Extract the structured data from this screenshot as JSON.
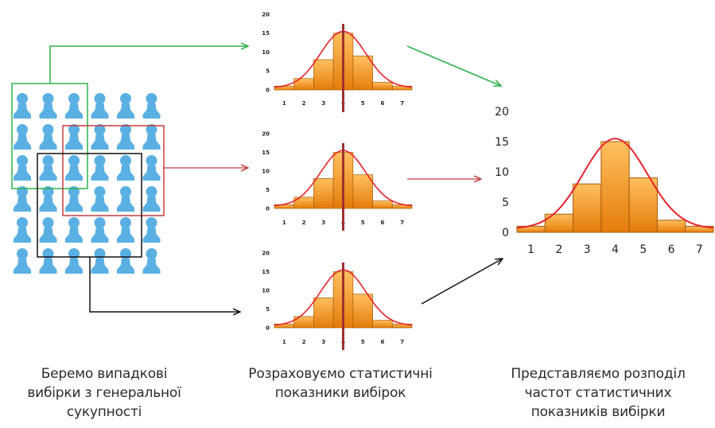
{
  "colors": {
    "pawn": "#5bb0e3",
    "bar_top": "#ffb14a",
    "bar_bottom": "#e67f0d",
    "bar_stroke": "#a85a08",
    "curve": "#e8242b",
    "mean_line": "#a03030",
    "box_green": "#2db24a",
    "box_red": "#c83c3c",
    "box_black": "#111111",
    "arrow_green": "#2db24a",
    "arrow_red": "#c83c3c",
    "arrow_black": "#111111"
  },
  "population": {
    "rows": 6,
    "cols": 6,
    "icon": "person-pawn-icon"
  },
  "chart_data": [
    {
      "type": "bar",
      "id": "sample-1",
      "categories": [
        "1",
        "2",
        "3",
        "4",
        "5",
        "6",
        "7"
      ],
      "values": [
        1,
        3,
        8,
        15,
        9,
        2,
        1
      ],
      "ylim": [
        0,
        20
      ],
      "yticks": [
        "0",
        "5",
        "10",
        "15",
        "20"
      ],
      "mean_line_at": 4,
      "curve": "normal"
    },
    {
      "type": "bar",
      "id": "sample-2",
      "categories": [
        "1",
        "2",
        "3",
        "4",
        "5",
        "6",
        "7"
      ],
      "values": [
        1,
        3,
        8,
        15,
        9,
        2,
        1
      ],
      "ylim": [
        0,
        20
      ],
      "yticks": [
        "0",
        "5",
        "10",
        "15",
        "20"
      ],
      "mean_line_at": 4,
      "curve": "normal"
    },
    {
      "type": "bar",
      "id": "sample-3",
      "categories": [
        "1",
        "2",
        "3",
        "4",
        "5",
        "6",
        "7"
      ],
      "values": [
        1,
        3,
        8,
        15,
        9,
        2,
        1
      ],
      "ylim": [
        0,
        20
      ],
      "yticks": [
        "0",
        "5",
        "10",
        "15",
        "20"
      ],
      "mean_line_at": 4,
      "curve": "normal"
    },
    {
      "type": "bar",
      "id": "distribution",
      "categories": [
        "1",
        "2",
        "3",
        "4",
        "5",
        "6",
        "7"
      ],
      "values": [
        1,
        3,
        8,
        15,
        9,
        2,
        1
      ],
      "ylim": [
        0,
        20
      ],
      "yticks": [
        "0",
        "5",
        "10",
        "15",
        "20"
      ],
      "curve": "normal"
    }
  ],
  "captions": {
    "left": [
      "Беремо випадкові",
      "вибірки з генеральної",
      "сукупності"
    ],
    "middle": [
      "Розраховуємо статистичні",
      "показники вибірок"
    ],
    "right": [
      "Представляємо розподіл",
      "частот статистичних",
      "показників вибірки"
    ]
  }
}
